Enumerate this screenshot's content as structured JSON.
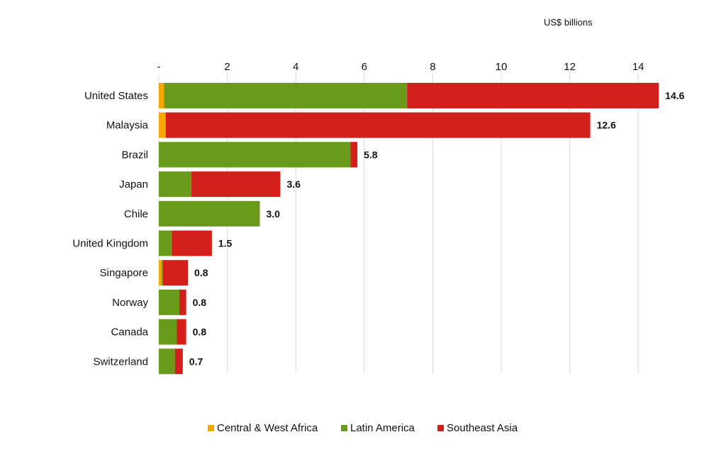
{
  "chart_data": {
    "type": "bar",
    "orientation": "horizontal",
    "stacked": true,
    "unit_label": "US$ billions",
    "x_tick_labels": [
      "-",
      "2",
      "4",
      "6",
      "8",
      "10",
      "12",
      "14"
    ],
    "x_ticks": [
      0,
      2,
      4,
      6,
      8,
      10,
      12,
      14
    ],
    "xlim": [
      0,
      15.2
    ],
    "grid": true,
    "legend_position": "bottom",
    "categories": [
      "United States",
      "Malaysia",
      "Brazil",
      "Japan",
      "Chile",
      "United Kingdom",
      "Singapore",
      "Norway",
      "Canada",
      "Switzerland"
    ],
    "series": [
      {
        "name": "Central & West Africa",
        "color": "#f5a800",
        "values": [
          0.15,
          0.2,
          0,
          0,
          0,
          0,
          0.08,
          0,
          0,
          0
        ]
      },
      {
        "name": "Latin America",
        "color": "#6a9a1a",
        "values": [
          7.1,
          0,
          5.6,
          0.95,
          2.95,
          0.38,
          0.04,
          0.6,
          0.52,
          0.47
        ]
      },
      {
        "name": "Southeast Asia",
        "color": "#d21f1a",
        "values": [
          7.35,
          12.4,
          0.2,
          2.6,
          0,
          1.17,
          0.73,
          0.2,
          0.28,
          0.23
        ]
      }
    ],
    "totals": [
      "14.6",
      "12.6",
      "5.8",
      "3.6",
      "3.0",
      "1.5",
      "0.8",
      "0.8",
      "0.8",
      "0.7"
    ]
  }
}
